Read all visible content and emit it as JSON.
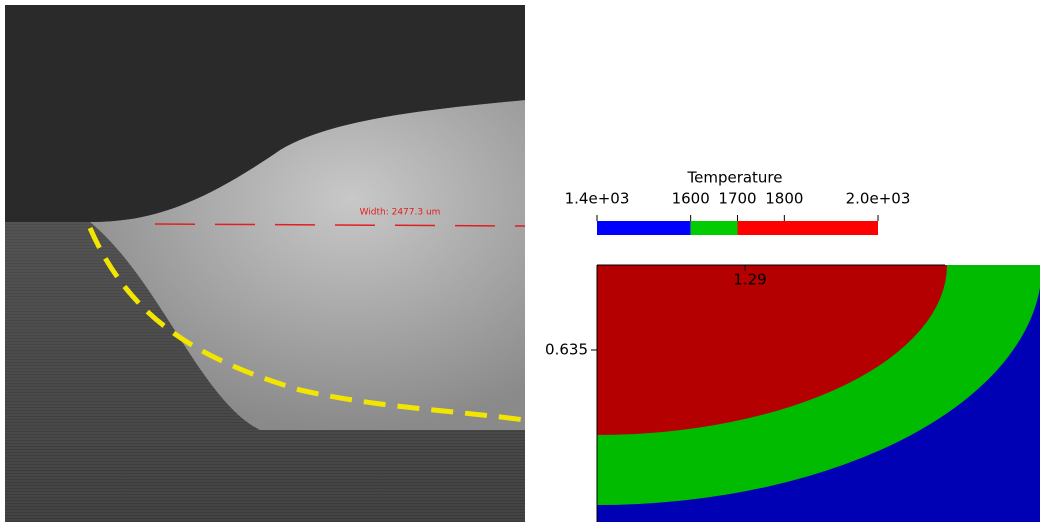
{
  "micrograph": {
    "annotation": "Width: 2477.3 um"
  },
  "contour": {
    "colorbar": {
      "title": "Temperature",
      "range": [
        1400,
        2000
      ],
      "ticks": [
        {
          "value": 1400,
          "label": "1.4e+03"
        },
        1600,
        1700,
        1800,
        {
          "value": 2000,
          "label": "2.0e+03"
        }
      ],
      "bands": [
        {
          "from": 1400,
          "to": 1600,
          "color": "#0000ff"
        },
        {
          "from": 1600,
          "to": 1700,
          "color": "#00cc00"
        },
        {
          "from": 1700,
          "to": 2000,
          "color": "#ff0000"
        }
      ]
    },
    "x_tick": "1.29",
    "y_tick": "0.635"
  }
}
